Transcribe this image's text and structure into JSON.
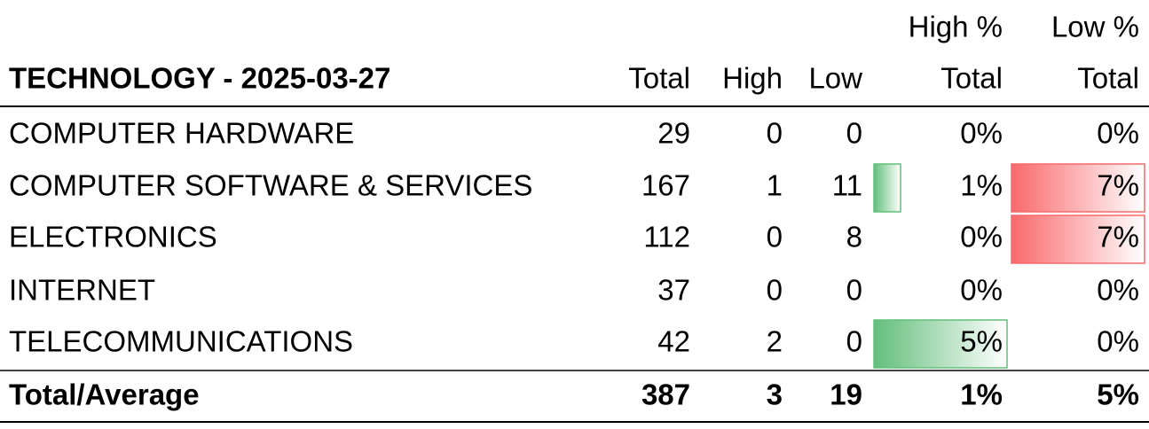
{
  "table": {
    "title": "TECHNOLOGY - 2025-03-27",
    "columns": [
      [
        "Total"
      ],
      [
        "High"
      ],
      [
        "Low"
      ],
      [
        "High %",
        "Total"
      ],
      [
        "Low %",
        "Total"
      ]
    ],
    "rows": [
      [
        "COMPUTER HARDWARE",
        "29",
        "0",
        "0",
        "0%",
        "0%"
      ],
      [
        "COMPUTER SOFTWARE & SERVICES",
        "167",
        "1",
        "11",
        "1%",
        "7%"
      ],
      [
        "ELECTRONICS",
        "112",
        "0",
        "8",
        "0%",
        "7%"
      ],
      [
        "INTERNET",
        "37",
        "0",
        "0",
        "0%",
        "0%"
      ],
      [
        "TELECOMMUNICATIONS",
        "42",
        "2",
        "0",
        "5%",
        "0%"
      ]
    ],
    "total": [
      "Total/Average",
      "387",
      "3",
      "19",
      "1%",
      "5%"
    ]
  }
}
